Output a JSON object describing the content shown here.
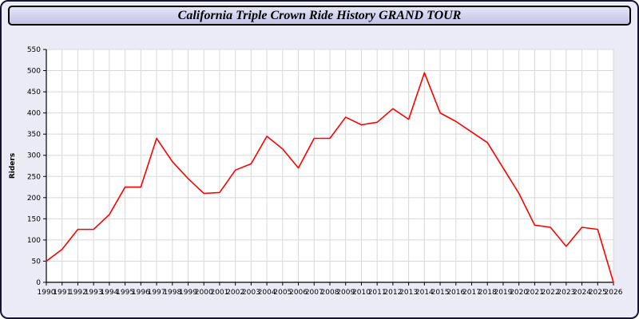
{
  "window": {
    "title": "California Triple Crown Ride History GRAND TOUR"
  },
  "colors": {
    "page_background": "#ebebf7",
    "titlebar_background": "#ccccee",
    "plot_background": "#ffffff",
    "grid": "#d8d8d8",
    "axis": "#000000",
    "line": "#ff0000"
  },
  "chart_data": {
    "type": "line",
    "title": "California Triple Crown Ride History GRAND TOUR",
    "xlabel": "",
    "ylabel": "Riders",
    "x": [
      1990,
      1991,
      1992,
      1993,
      1994,
      1995,
      1996,
      1997,
      1998,
      1999,
      2000,
      2001,
      2002,
      2003,
      2004,
      2005,
      2006,
      2007,
      2008,
      2009,
      2010,
      2011,
      2012,
      2013,
      2014,
      2015,
      2016,
      2017,
      2018,
      2019,
      2020,
      2021,
      2022,
      2023,
      2024,
      2025,
      2026
    ],
    "series": [
      {
        "name": "Riders",
        "color": "#ff0000",
        "values": [
          50,
          78,
          125,
          125,
          160,
          225,
          225,
          340,
          285,
          245,
          210,
          212,
          265,
          280,
          345,
          315,
          270,
          340,
          340,
          390,
          372,
          378,
          410,
          385,
          495,
          400,
          380,
          355,
          330,
          270,
          210,
          135,
          130,
          85,
          130,
          125,
          0
        ]
      }
    ],
    "ylim": [
      0,
      550
    ],
    "ytick_step": 50,
    "grid": true,
    "legend_position": "none"
  }
}
